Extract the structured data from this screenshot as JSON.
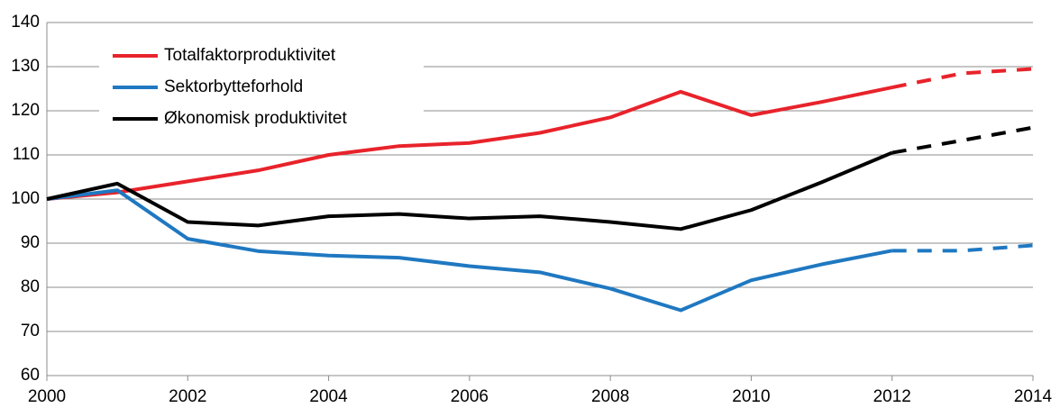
{
  "chart_data": {
    "type": "line",
    "x": [
      2000,
      2001,
      2002,
      2003,
      2004,
      2005,
      2006,
      2007,
      2008,
      2009,
      2010,
      2011,
      2012,
      2013,
      2014
    ],
    "series": [
      {
        "name": "Totalfaktorproduktivitet",
        "color": "#e8232b",
        "dashed_from": 2012,
        "values": [
          100,
          101.5,
          104,
          106.5,
          110,
          112,
          112.7,
          115,
          118.5,
          124.3,
          119,
          122,
          125.3,
          128.5,
          129.5
        ]
      },
      {
        "name": "Sektorbytteforhold",
        "color": "#1f78c1",
        "dashed_from": 2012,
        "values": [
          100,
          102,
          91,
          88.2,
          87.2,
          86.7,
          84.8,
          83.4,
          79.7,
          74.8,
          81.6,
          85.2,
          88.3,
          88.3,
          89.5
        ]
      },
      {
        "name": "Økonomisk produktivitet",
        "color": "#000000",
        "dashed_from": 2012,
        "values": [
          100,
          103.5,
          94.8,
          94,
          96.1,
          96.6,
          95.6,
          96.1,
          94.8,
          93.2,
          97.5,
          103.8,
          110.5,
          113.3,
          116.2
        ]
      }
    ],
    "xlim": [
      2000,
      2014
    ],
    "xticks": [
      2000,
      2002,
      2004,
      2006,
      2008,
      2010,
      2012,
      2014
    ],
    "ylim": [
      60,
      140
    ],
    "yticks": [
      60,
      70,
      80,
      90,
      100,
      110,
      120,
      130,
      140
    ],
    "grid": true,
    "legend": "upper left"
  }
}
